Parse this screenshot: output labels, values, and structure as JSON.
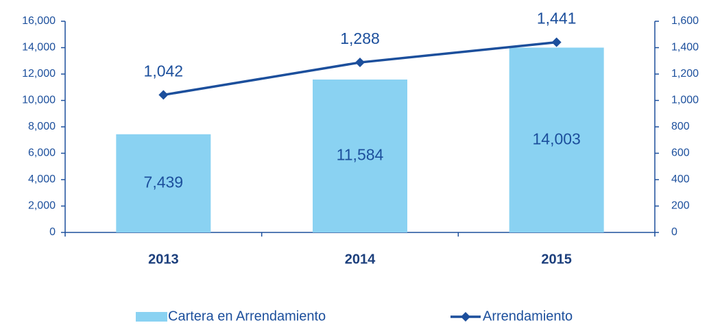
{
  "chart_data": {
    "type": "bar",
    "categories": [
      "2013",
      "2014",
      "2015"
    ],
    "series": [
      {
        "name": "Cartera en Arrendamiento",
        "type": "bar",
        "color": "#8ad2f2",
        "values": [
          7439,
          11584,
          14003
        ],
        "value_labels": [
          "7,439",
          "11,584",
          "14,003"
        ]
      },
      {
        "name": "Arrendamiento",
        "type": "line",
        "axis": "y2",
        "color": "#1c4f9c",
        "values": [
          1042,
          1288,
          1441
        ],
        "value_labels": [
          "1,042",
          "1,288",
          "1,441"
        ]
      }
    ],
    "ylim": [
      0,
      16000
    ],
    "yticks": [
      0,
      {
        "value": 2000,
        "label": "2,000"
      },
      {
        "value": 4000,
        "label": "4,000"
      },
      {
        "value": 6000,
        "label": "6,000"
      },
      {
        "value": 8000,
        "label": "8,000"
      },
      {
        "value": 10000,
        "label": "10,000"
      },
      {
        "value": 12000,
        "label": "12,000"
      },
      {
        "value": 14000,
        "label": "14,000"
      },
      {
        "value": 16000,
        "label": "16,000"
      }
    ],
    "y2lim": [
      0,
      1600
    ],
    "y2ticks": [
      0,
      200,
      400,
      600,
      800,
      {
        "value": 1000,
        "label": "1,000"
      },
      {
        "value": 1200,
        "label": "1,200"
      },
      {
        "value": 1400,
        "label": "1,400"
      },
      {
        "value": 1600,
        "label": "1,600"
      }
    ],
    "legend": "bottom"
  }
}
